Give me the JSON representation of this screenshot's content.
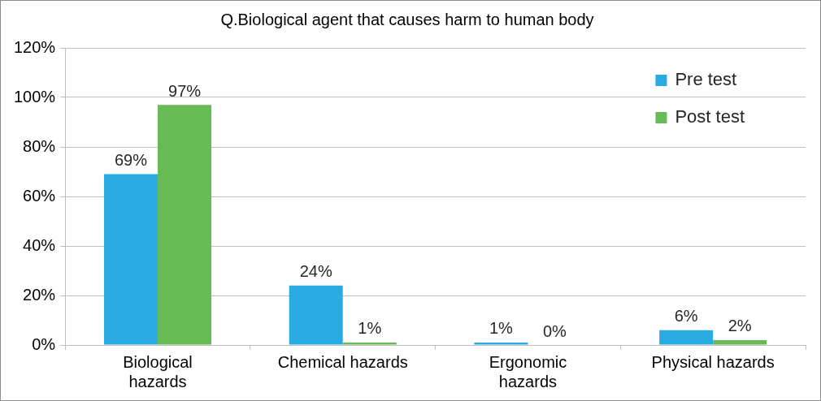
{
  "chart_data": {
    "type": "bar",
    "title": "Q.Biological agent that causes harm to human body",
    "categories": [
      [
        "Biological",
        "hazards"
      ],
      "Chemical hazards",
      [
        "Ergonomic",
        "hazards"
      ],
      "Physical hazards"
    ],
    "series": [
      {
        "name": "Pre test",
        "color": "#29abe2",
        "values": [
          69,
          24,
          1,
          6
        ],
        "value_labels": [
          "69%",
          "24%",
          "1%",
          "6%"
        ]
      },
      {
        "name": "Post test",
        "color": "#66bb55",
        "values": [
          97,
          1,
          0,
          2
        ],
        "value_labels": [
          "97%",
          "1%",
          "0%",
          "2%"
        ]
      }
    ],
    "ylim": [
      0,
      120
    ],
    "yticks": [
      {
        "value": 0,
        "label": "0%"
      },
      {
        "value": 20,
        "label": "20%"
      },
      {
        "value": 40,
        "label": "40%"
      },
      {
        "value": 60,
        "label": "60%"
      },
      {
        "value": 80,
        "label": "80%"
      },
      {
        "value": 100,
        "label": "100%"
      },
      {
        "value": 120,
        "label": "120%"
      }
    ],
    "grid": true,
    "legend": "upper right",
    "data_labels": true
  }
}
